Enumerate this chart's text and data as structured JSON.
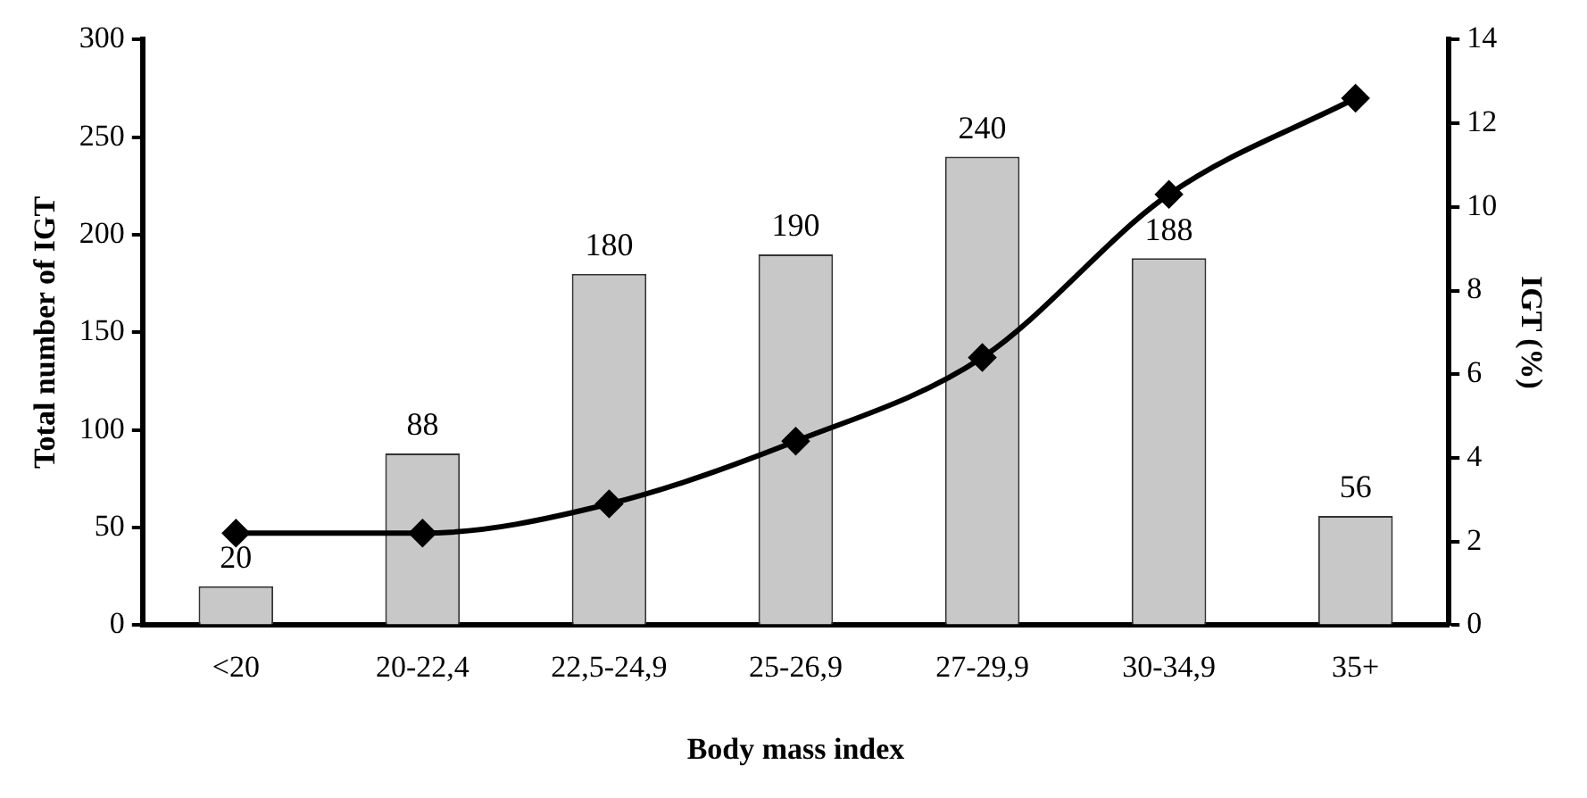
{
  "chart_data": {
    "type": "bar",
    "xlabel": "Body mass index",
    "ylabel": "Total number of IGT",
    "y2label": "IGT (%)",
    "categories": [
      "<20",
      "20-22,4",
      "22,5-24,9",
      "25-26,9",
      "27-29,9",
      "30-34,9",
      "35+"
    ],
    "series": [
      {
        "color": "#c8c8c8",
        "values": [
          20,
          88,
          180,
          190,
          240,
          188,
          56
        ],
        "value_labels": [
          "20",
          "88",
          "180",
          "190",
          "240",
          "188",
          "56"
        ]
      },
      {
        "type": "line",
        "axis": "y2",
        "color": "#000000",
        "values": [
          2.2,
          2.2,
          2.9,
          4.4,
          6.4,
          10.3,
          12.6
        ]
      }
    ],
    "ylim": [
      0,
      300
    ],
    "yticks": [
      0,
      50,
      100,
      150,
      200,
      250,
      300
    ],
    "y2lim": [
      0,
      14
    ],
    "y2ticks": [
      0,
      2,
      4,
      6,
      8,
      10,
      12,
      14
    ],
    "grid": false,
    "legend": false,
    "marker": "diamond",
    "line_style": "solid"
  }
}
